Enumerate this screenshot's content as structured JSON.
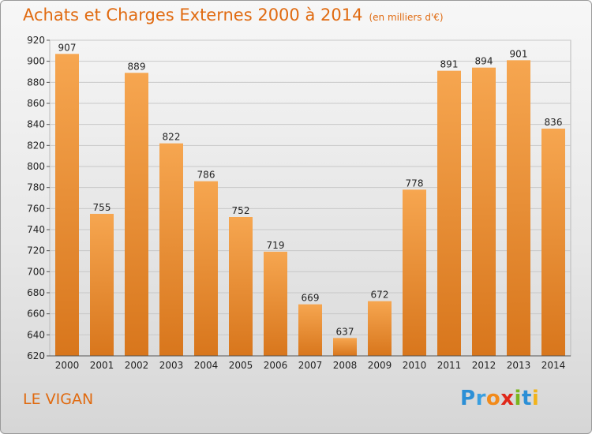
{
  "title": "Achats et Charges Externes 2000 à 2014",
  "subtitle": "(en milliers d'€)",
  "town": "LE VIGAN",
  "logo": {
    "text": "Proxiti",
    "letters": [
      {
        "ch": "P",
        "color": "#2b8fd6"
      },
      {
        "ch": "r",
        "color": "#3a9fe0"
      },
      {
        "ch": "o",
        "color": "#f28a1a"
      },
      {
        "ch": "x",
        "color": "#e0281a"
      },
      {
        "ch": "i",
        "color": "#7ab51d"
      },
      {
        "ch": "t",
        "color": "#2b8fd6"
      },
      {
        "ch": "i",
        "color": "#f2b31a"
      }
    ]
  },
  "colors": {
    "accent": "#e06a10",
    "bar_top": "#f6a650",
    "bar_bottom": "#d8761c"
  },
  "chart_data": {
    "type": "bar",
    "title": "Achats et Charges Externes 2000 à 2014",
    "subtitle": "(en milliers d'€)",
    "categories": [
      "2000",
      "2001",
      "2002",
      "2003",
      "2004",
      "2005",
      "2006",
      "2007",
      "2008",
      "2009",
      "2010",
      "2011",
      "2012",
      "2013",
      "2014"
    ],
    "values": [
      907,
      755,
      889,
      822,
      786,
      752,
      719,
      669,
      637,
      672,
      778,
      891,
      894,
      901,
      836
    ],
    "ylim": [
      620,
      920
    ],
    "yticks": [
      620,
      640,
      660,
      680,
      700,
      720,
      740,
      760,
      780,
      800,
      820,
      840,
      860,
      880,
      900,
      920
    ],
    "grid": true
  }
}
